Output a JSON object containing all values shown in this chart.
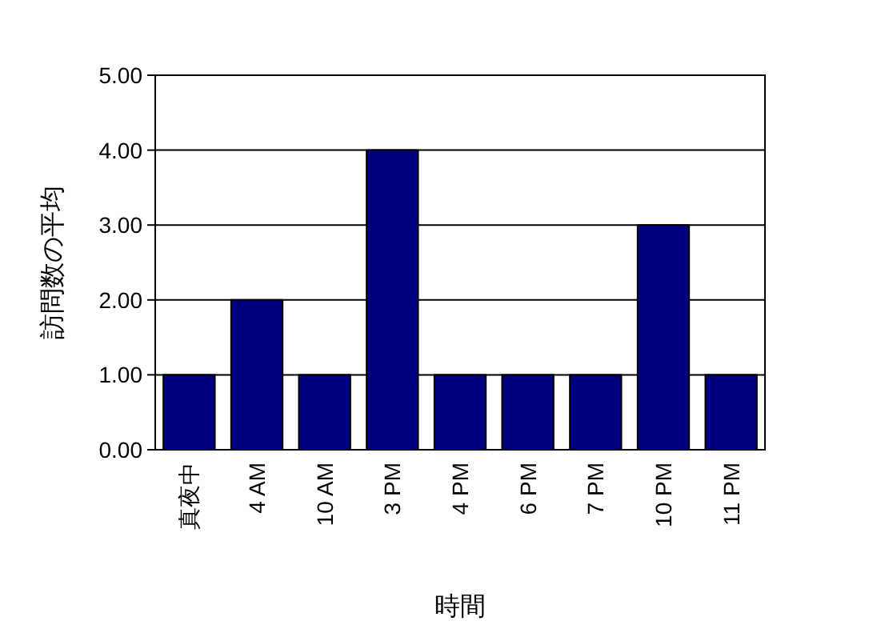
{
  "chart_data": {
    "type": "bar",
    "xlabel": "時間",
    "ylabel": "訪問数の平均",
    "categories": [
      "真夜中",
      "4 AM",
      "10 AM",
      "3 PM",
      "4 PM",
      "6 PM",
      "7 PM",
      "10 PM",
      "11 PM"
    ],
    "values": [
      1,
      2,
      1,
      4,
      1,
      1,
      1,
      3,
      1
    ],
    "color": "#000080",
    "ylim": [
      0,
      5
    ],
    "yticks": [
      {
        "value": 0,
        "label": "0.00"
      },
      {
        "value": 1,
        "label": "1.00"
      },
      {
        "value": 2,
        "label": "2.00"
      },
      {
        "value": 3,
        "label": "3.00"
      },
      {
        "value": 4,
        "label": "4.00"
      },
      {
        "value": 5,
        "label": "5.00"
      }
    ],
    "grid": "y"
  }
}
